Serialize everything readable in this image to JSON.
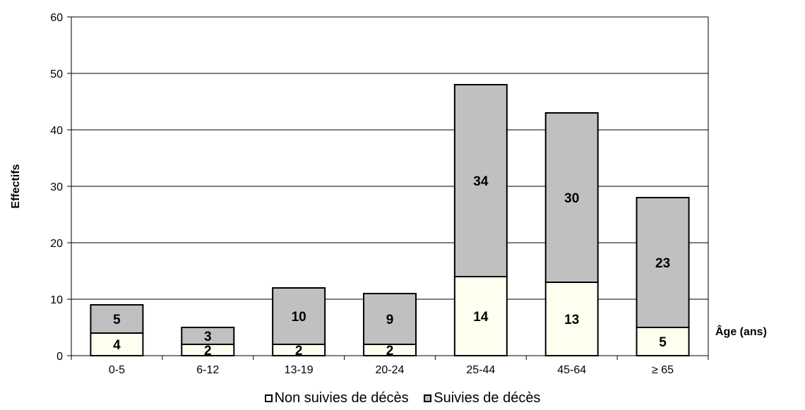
{
  "chart_data": {
    "type": "bar",
    "stacked": true,
    "categories": [
      "0-5",
      "6-12",
      "13-19",
      "20-24",
      "25-44",
      "45-64",
      "≥ 65"
    ],
    "series": [
      {
        "name": "Non suivies de décès",
        "values": [
          4,
          2,
          2,
          2,
          14,
          13,
          5
        ],
        "color": "#fffff0"
      },
      {
        "name": "Suivies de décès",
        "values": [
          5,
          3,
          10,
          9,
          34,
          30,
          23
        ],
        "color": "#c0c0c0"
      }
    ],
    "ylabel": "Effectifs",
    "xlabel": "Âge (ans)",
    "ylim": [
      0,
      60
    ],
    "yticks": [
      0,
      10,
      20,
      30,
      40,
      50,
      60
    ],
    "grid": true,
    "legend_position": "bottom"
  }
}
